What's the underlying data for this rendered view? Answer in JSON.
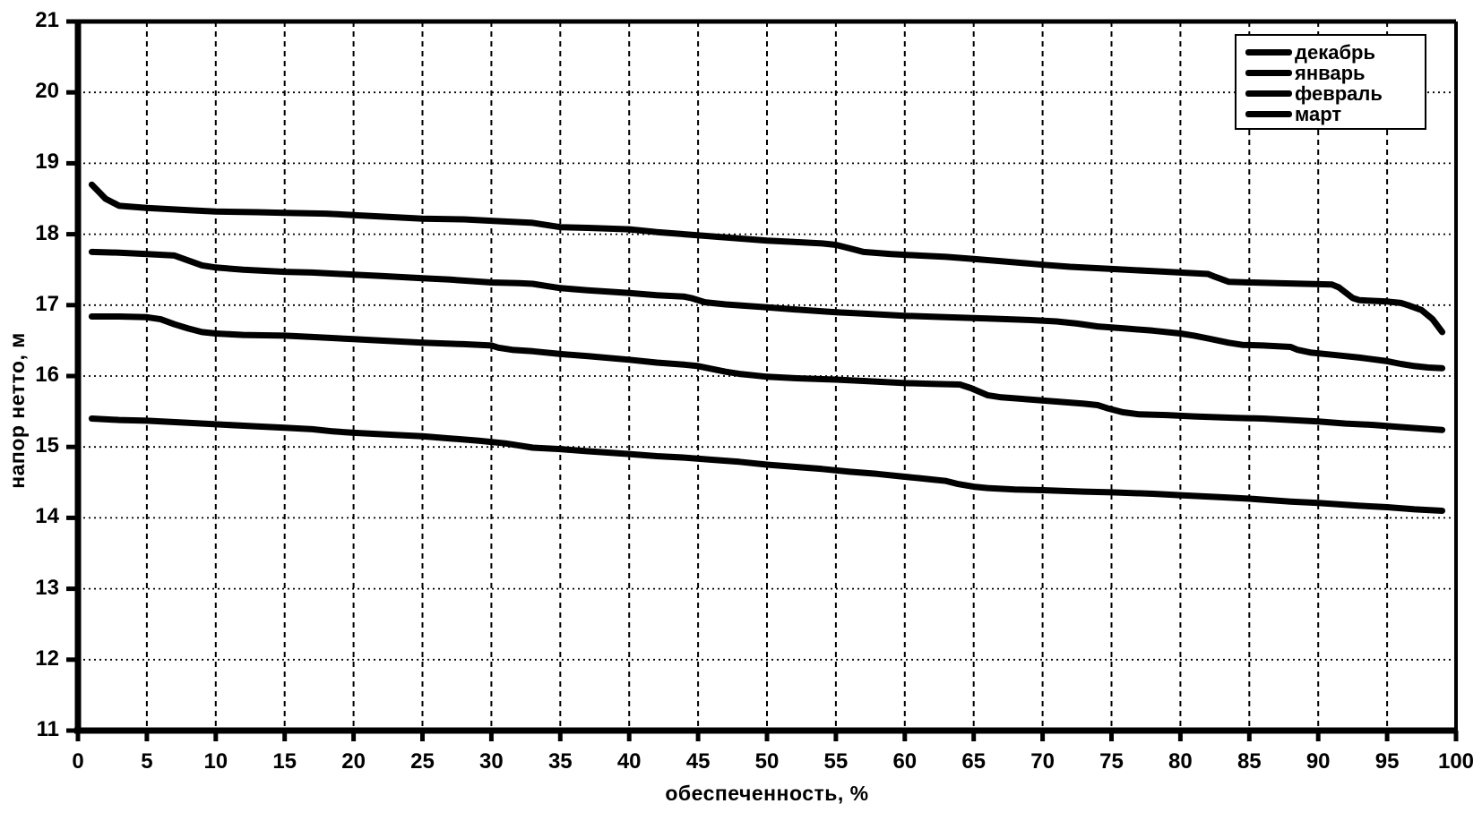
{
  "chart_data": {
    "type": "line",
    "title": "",
    "xlabel": "обеспеченность, %",
    "ylabel": "напор нетто, м",
    "xlim": [
      0,
      100
    ],
    "ylim": [
      11,
      21
    ],
    "x_ticks": [
      0,
      5,
      10,
      15,
      20,
      25,
      30,
      35,
      40,
      45,
      50,
      55,
      60,
      65,
      70,
      75,
      80,
      85,
      90,
      95,
      100
    ],
    "y_ticks": [
      11,
      12,
      13,
      14,
      15,
      16,
      17,
      18,
      19,
      20,
      21
    ],
    "grid": true,
    "legend_position": "top-right",
    "line_color": "#000000",
    "background_color": "#ffffff",
    "series": [
      {
        "name": "декабрь",
        "points": [
          [
            1,
            18.7
          ],
          [
            1.5,
            18.6
          ],
          [
            2,
            18.5
          ],
          [
            3,
            18.4
          ],
          [
            5,
            18.37
          ],
          [
            8,
            18.34
          ],
          [
            10,
            18.32
          ],
          [
            13,
            18.31
          ],
          [
            15,
            18.3
          ],
          [
            18,
            18.29
          ],
          [
            20,
            18.27
          ],
          [
            23,
            18.24
          ],
          [
            25,
            18.22
          ],
          [
            28,
            18.21
          ],
          [
            30,
            18.19
          ],
          [
            33,
            18.16
          ],
          [
            34,
            18.13
          ],
          [
            35,
            18.1
          ],
          [
            37,
            18.09
          ],
          [
            40,
            18.07
          ],
          [
            42,
            18.03
          ],
          [
            44,
            18.0
          ],
          [
            46,
            17.97
          ],
          [
            48,
            17.94
          ],
          [
            50,
            17.91
          ],
          [
            52,
            17.89
          ],
          [
            54,
            17.87
          ],
          [
            55,
            17.85
          ],
          [
            56,
            17.8
          ],
          [
            57,
            17.75
          ],
          [
            59,
            17.72
          ],
          [
            61,
            17.7
          ],
          [
            63,
            17.68
          ],
          [
            65,
            17.65
          ],
          [
            67,
            17.62
          ],
          [
            70,
            17.57
          ],
          [
            72,
            17.54
          ],
          [
            75,
            17.51
          ],
          [
            78,
            17.48
          ],
          [
            80,
            17.46
          ],
          [
            82,
            17.44
          ],
          [
            82.5,
            17.4
          ],
          [
            83.5,
            17.33
          ],
          [
            85,
            17.32
          ],
          [
            87,
            17.31
          ],
          [
            89,
            17.3
          ],
          [
            91,
            17.29
          ],
          [
            91.5,
            17.25
          ],
          [
            92.5,
            17.1
          ],
          [
            93,
            17.07
          ],
          [
            95,
            17.05
          ],
          [
            96,
            17.03
          ],
          [
            96.5,
            17.0
          ],
          [
            97.5,
            16.93
          ],
          [
            98.3,
            16.8
          ],
          [
            99,
            16.62
          ]
        ]
      },
      {
        "name": "январь",
        "points": [
          [
            1,
            17.75
          ],
          [
            3,
            17.74
          ],
          [
            5,
            17.72
          ],
          [
            7,
            17.7
          ],
          [
            8,
            17.63
          ],
          [
            9,
            17.56
          ],
          [
            10,
            17.53
          ],
          [
            12,
            17.5
          ],
          [
            15,
            17.47
          ],
          [
            17,
            17.46
          ],
          [
            20,
            17.43
          ],
          [
            22,
            17.41
          ],
          [
            25,
            17.38
          ],
          [
            27,
            17.36
          ],
          [
            30,
            17.32
          ],
          [
            32,
            17.31
          ],
          [
            33,
            17.3
          ],
          [
            34,
            17.27
          ],
          [
            35,
            17.24
          ],
          [
            37,
            17.21
          ],
          [
            40,
            17.17
          ],
          [
            42,
            17.14
          ],
          [
            44,
            17.12
          ],
          [
            44.5,
            17.1
          ],
          [
            45.5,
            17.04
          ],
          [
            47,
            17.01
          ],
          [
            50,
            16.97
          ],
          [
            52,
            16.94
          ],
          [
            55,
            16.9
          ],
          [
            57,
            16.88
          ],
          [
            60,
            16.85
          ],
          [
            63,
            16.83
          ],
          [
            66,
            16.81
          ],
          [
            69,
            16.79
          ],
          [
            71,
            16.77
          ],
          [
            72.5,
            16.74
          ],
          [
            74,
            16.7
          ],
          [
            76,
            16.67
          ],
          [
            78,
            16.64
          ],
          [
            80,
            16.6
          ],
          [
            81,
            16.57
          ],
          [
            82,
            16.53
          ],
          [
            83.5,
            16.47
          ],
          [
            84.5,
            16.44
          ],
          [
            86,
            16.43
          ],
          [
            88,
            16.41
          ],
          [
            88.5,
            16.37
          ],
          [
            89.5,
            16.33
          ],
          [
            91,
            16.3
          ],
          [
            93,
            16.26
          ],
          [
            95,
            16.21
          ],
          [
            96,
            16.17
          ],
          [
            97,
            16.14
          ],
          [
            98,
            16.12
          ],
          [
            99,
            16.11
          ]
        ]
      },
      {
        "name": "февраль",
        "points": [
          [
            1,
            16.84
          ],
          [
            3,
            16.84
          ],
          [
            5,
            16.83
          ],
          [
            6,
            16.8
          ],
          [
            7,
            16.73
          ],
          [
            8,
            16.67
          ],
          [
            9,
            16.62
          ],
          [
            10,
            16.6
          ],
          [
            12,
            16.58
          ],
          [
            15,
            16.57
          ],
          [
            17,
            16.55
          ],
          [
            20,
            16.52
          ],
          [
            22,
            16.5
          ],
          [
            25,
            16.47
          ],
          [
            28,
            16.45
          ],
          [
            30,
            16.43
          ],
          [
            30.5,
            16.4
          ],
          [
            31.5,
            16.37
          ],
          [
            33,
            16.35
          ],
          [
            35,
            16.31
          ],
          [
            37,
            16.28
          ],
          [
            40,
            16.23
          ],
          [
            42,
            16.19
          ],
          [
            44,
            16.16
          ],
          [
            45,
            16.14
          ],
          [
            46,
            16.1
          ],
          [
            47,
            16.06
          ],
          [
            48,
            16.03
          ],
          [
            49,
            16.01
          ],
          [
            50,
            15.99
          ],
          [
            52,
            15.97
          ],
          [
            55,
            15.95
          ],
          [
            57,
            15.93
          ],
          [
            60,
            15.9
          ],
          [
            62,
            15.89
          ],
          [
            64,
            15.88
          ],
          [
            64.8,
            15.83
          ],
          [
            66,
            15.73
          ],
          [
            67,
            15.7
          ],
          [
            69,
            15.67
          ],
          [
            71,
            15.64
          ],
          [
            73,
            15.61
          ],
          [
            74,
            15.59
          ],
          [
            74.8,
            15.54
          ],
          [
            75.8,
            15.49
          ],
          [
            77,
            15.46
          ],
          [
            79,
            15.45
          ],
          [
            81,
            15.43
          ],
          [
            84,
            15.41
          ],
          [
            86,
            15.4
          ],
          [
            88,
            15.38
          ],
          [
            90,
            15.36
          ],
          [
            92,
            15.33
          ],
          [
            94,
            15.31
          ],
          [
            96,
            15.28
          ],
          [
            97.5,
            15.26
          ],
          [
            99,
            15.24
          ]
        ]
      },
      {
        "name": "март",
        "points": [
          [
            1,
            15.4
          ],
          [
            3,
            15.38
          ],
          [
            5,
            15.37
          ],
          [
            8,
            15.34
          ],
          [
            10,
            15.32
          ],
          [
            13,
            15.29
          ],
          [
            15,
            15.27
          ],
          [
            17,
            15.25
          ],
          [
            18.5,
            15.22
          ],
          [
            20,
            15.2
          ],
          [
            23,
            15.17
          ],
          [
            25,
            15.15
          ],
          [
            27,
            15.12
          ],
          [
            29,
            15.09
          ],
          [
            31,
            15.05
          ],
          [
            32,
            15.02
          ],
          [
            33,
            14.99
          ],
          [
            35,
            14.97
          ],
          [
            37,
            14.94
          ],
          [
            40,
            14.9
          ],
          [
            42,
            14.87
          ],
          [
            44,
            14.85
          ],
          [
            46,
            14.82
          ],
          [
            48,
            14.79
          ],
          [
            50,
            14.75
          ],
          [
            52,
            14.72
          ],
          [
            54,
            14.69
          ],
          [
            56,
            14.65
          ],
          [
            58,
            14.62
          ],
          [
            60,
            14.58
          ],
          [
            61,
            14.56
          ],
          [
            62,
            14.54
          ],
          [
            63,
            14.52
          ],
          [
            63.8,
            14.48
          ],
          [
            65,
            14.44
          ],
          [
            66,
            14.42
          ],
          [
            68,
            14.4
          ],
          [
            70,
            14.39
          ],
          [
            73,
            14.37
          ],
          [
            75,
            14.36
          ],
          [
            78,
            14.34
          ],
          [
            80,
            14.32
          ],
          [
            83,
            14.29
          ],
          [
            85,
            14.27
          ],
          [
            88,
            14.23
          ],
          [
            90,
            14.21
          ],
          [
            93,
            14.17
          ],
          [
            95,
            14.15
          ],
          [
            97,
            14.12
          ],
          [
            99,
            14.1
          ]
        ]
      }
    ]
  }
}
